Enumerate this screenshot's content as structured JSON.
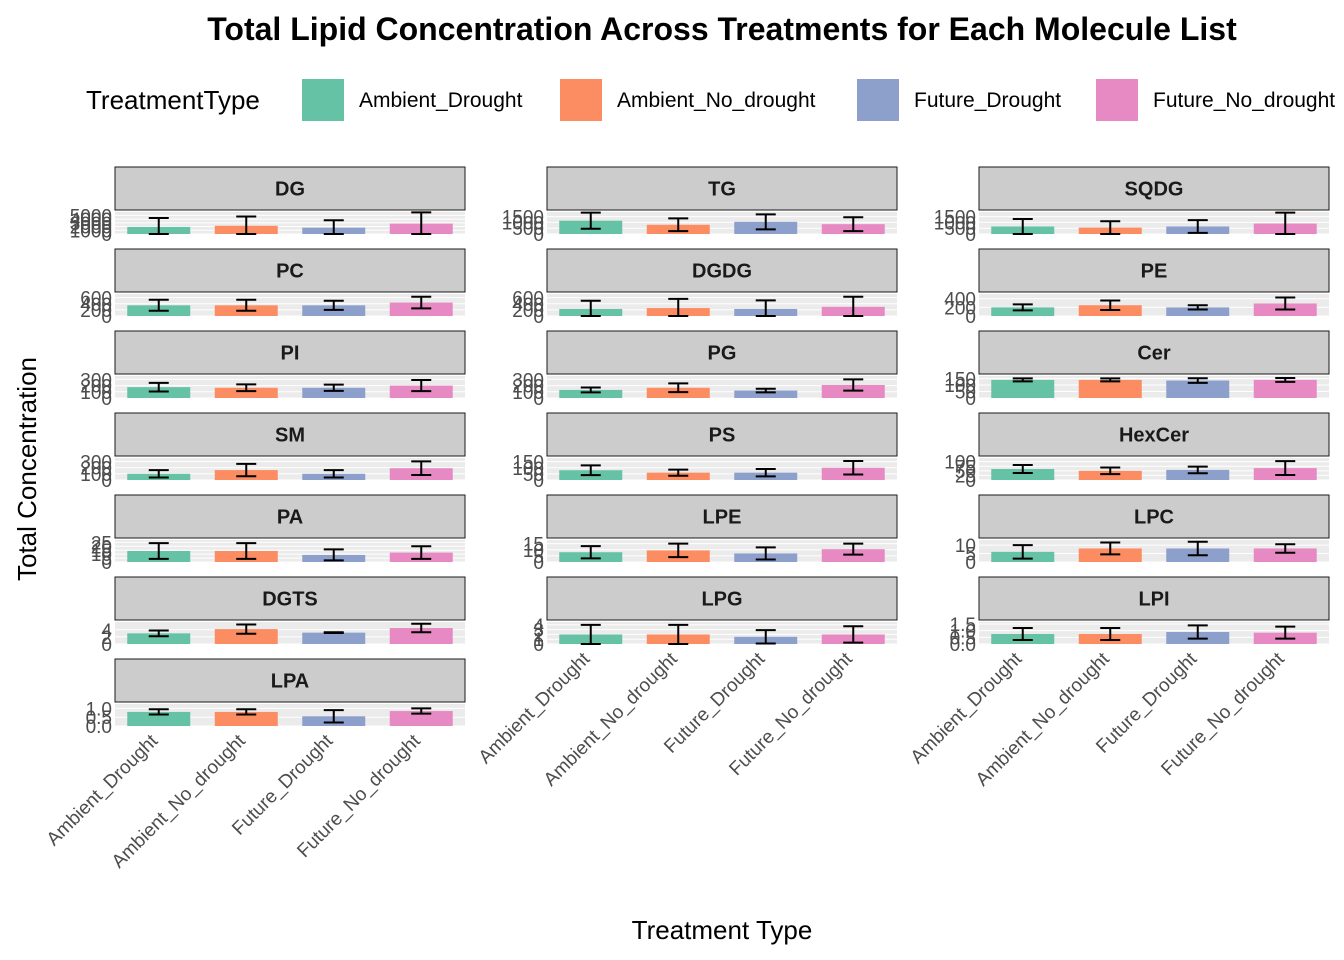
{
  "chart_data": {
    "type": "bar",
    "title": "Total Lipid Concentration Across Treatments for Each Molecule List",
    "xlabel": "Treatment Type",
    "ylabel": "Total Concentration",
    "legend": {
      "title": "TreatmentType",
      "placement": "top",
      "entries": [
        {
          "name": "Ambient_Drought",
          "color": "#66C2A5"
        },
        {
          "name": "Ambient_No_drought",
          "color": "#FC8D62"
        },
        {
          "name": "Future_Drought",
          "color": "#8DA0CB"
        },
        {
          "name": "Future_No_drought",
          "color": "#E78AC3"
        }
      ]
    },
    "categories": [
      "Ambient_Drought",
      "Ambient_No_drought",
      "Future_Drought",
      "Future_No_drought"
    ],
    "facet_scales": "free_y",
    "grid": true,
    "error_bars": true,
    "panels": [
      {
        "name": "DG",
        "ylim": [
          0,
          5900
        ],
        "ticks": [
          "0",
          "1000",
          "2000",
          "3000",
          "4000",
          "5000"
        ],
        "values": [
          1900,
          2200,
          1700,
          2800
        ],
        "errors": [
          2400,
          2500,
          2000,
          3000
        ]
      },
      {
        "name": "TG",
        "ylim": [
          0,
          1900
        ],
        "ticks": [
          "0",
          "500",
          "1000",
          "1500"
        ],
        "values": [
          1150,
          800,
          1050,
          850
        ],
        "errors": [
          700,
          550,
          650,
          600
        ]
      },
      {
        "name": "SQDG",
        "ylim": [
          0,
          1900
        ],
        "ticks": [
          "0",
          "500",
          "1000",
          "1500"
        ],
        "values": [
          650,
          550,
          650,
          900
        ],
        "errors": [
          650,
          550,
          550,
          950
        ]
      },
      {
        "name": "PC",
        "ylim": [
          0,
          720
        ],
        "ticks": [
          "0",
          "200",
          "400",
          "600"
        ],
        "values": [
          350,
          350,
          350,
          440
        ],
        "errors": [
          180,
          180,
          150,
          190
        ]
      },
      {
        "name": "DGDG",
        "ylim": [
          0,
          720
        ],
        "ticks": [
          "0",
          "200",
          "400",
          "600"
        ],
        "values": [
          230,
          260,
          230,
          300
        ],
        "errors": [
          270,
          300,
          280,
          330
        ]
      },
      {
        "name": "PE",
        "ylim": [
          0,
          510
        ],
        "ticks": [
          "0",
          "200",
          "400"
        ],
        "values": [
          200,
          250,
          200,
          290
        ],
        "errors": [
          70,
          110,
          50,
          140
        ]
      },
      {
        "name": "PI",
        "ylim": [
          0,
          355
        ],
        "ticks": [
          "0",
          "100",
          "200",
          "300"
        ],
        "values": [
          175,
          165,
          165,
          200
        ],
        "errors": [
          70,
          55,
          50,
          90
        ]
      },
      {
        "name": "PG",
        "ylim": [
          0,
          355
        ],
        "ticks": [
          "0",
          "100",
          "200",
          "300"
        ],
        "values": [
          130,
          165,
          120,
          210
        ],
        "errors": [
          40,
          70,
          30,
          90
        ]
      },
      {
        "name": "Cer",
        "ylim": [
          0,
          170
        ],
        "ticks": [
          "0",
          "50",
          "100",
          "150"
        ],
        "values": [
          140,
          140,
          135,
          140
        ],
        "errors": [
          12,
          12,
          18,
          15
        ]
      },
      {
        "name": "SM",
        "ylim": [
          0,
          355
        ],
        "ticks": [
          "0",
          "100",
          "200",
          "300"
        ],
        "values": [
          100,
          160,
          100,
          190
        ],
        "errors": [
          60,
          100,
          60,
          110
        ]
      },
      {
        "name": "PS",
        "ylim": [
          0,
          180
        ],
        "ticks": [
          "0",
          "50",
          "100",
          "150"
        ],
        "values": [
          80,
          60,
          60,
          100
        ],
        "errors": [
          40,
          25,
          30,
          55
        ]
      },
      {
        "name": "HexCer",
        "ylim": [
          0,
          120
        ],
        "ticks": [
          "0",
          "25",
          "50",
          "75",
          "100"
        ],
        "values": [
          60,
          50,
          55,
          65
        ],
        "errors": [
          22,
          18,
          18,
          38
        ]
      },
      {
        "name": "PA",
        "ylim": [
          0,
          28
        ],
        "ticks": [
          "0",
          "5",
          "10",
          "15",
          "20",
          "25"
        ],
        "values": [
          14,
          14,
          9,
          12
        ],
        "errors": [
          10,
          10,
          7,
          8
        ]
      },
      {
        "name": "LPE",
        "ylim": [
          0,
          18
        ],
        "ticks": [
          "0",
          "5",
          "10",
          "15"
        ],
        "values": [
          8,
          9.5,
          7,
          10.5
        ],
        "errors": [
          5,
          5.5,
          5,
          4.5
        ]
      },
      {
        "name": "LPC",
        "ylim": [
          0,
          13
        ],
        "ticks": [
          "0",
          "5",
          "10"
        ],
        "values": [
          6,
          8,
          8,
          8
        ],
        "errors": [
          4,
          3.5,
          4,
          2.5
        ]
      },
      {
        "name": "DGTS",
        "ylim": [
          0,
          6.2
        ],
        "ticks": [
          "0",
          "2",
          "4"
        ],
        "values": [
          3,
          4.2,
          3.2,
          4.5
        ],
        "errors": [
          0.8,
          1.3,
          0.1,
          1.2
        ]
      },
      {
        "name": "LPG",
        "ylim": [
          0,
          4.6
        ],
        "ticks": [
          "0",
          "1",
          "2",
          "3",
          "4"
        ],
        "values": [
          2,
          2,
          1.5,
          2
        ],
        "errors": [
          2,
          2,
          1.4,
          1.7
        ]
      },
      {
        "name": "LPI",
        "ylim": [
          0,
          1.65
        ],
        "ticks": [
          "0.0",
          "0.5",
          "1.0",
          "1.5"
        ],
        "values": [
          0.75,
          0.75,
          0.9,
          0.85
        ],
        "errors": [
          0.45,
          0.45,
          0.5,
          0.45
        ]
      },
      {
        "name": "LPA",
        "ylim": [
          0,
          1.25
        ],
        "ticks": [
          "0.0",
          "0.5",
          "1.0"
        ],
        "values": [
          0.8,
          0.8,
          0.55,
          0.85
        ],
        "errors": [
          0.15,
          0.15,
          0.35,
          0.15
        ]
      }
    ]
  }
}
